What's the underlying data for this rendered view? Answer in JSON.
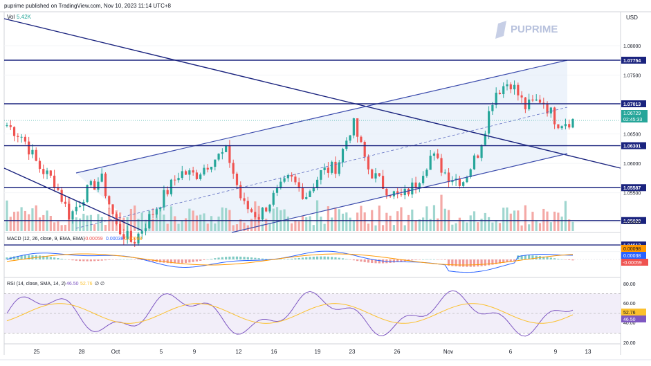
{
  "header": {
    "published_text": "puprime published on TradingView.com, Nov 10, 2023 11:14 UTC+8",
    "brand": "PUPRIME"
  },
  "price_pane": {
    "volume_label": "Vol",
    "volume_value": "5.42K",
    "currency": "USD",
    "price_ticks": [
      "1.08000",
      "1.07500",
      "1.06500",
      "1.06000",
      "1.05500",
      "1.05000",
      "1.04500"
    ],
    "levels": [
      {
        "label": "1.07754",
        "value": 1.07754
      },
      {
        "label": "1.07013",
        "value": 1.07013
      },
      {
        "label": "1.06301",
        "value": 1.06301
      },
      {
        "label": "1.05587",
        "value": 1.05587
      },
      {
        "label": "1.05028",
        "value": 1.05028
      },
      {
        "label": "1.04613",
        "value": 1.04613
      }
    ],
    "last_price": {
      "label": "1.06729",
      "value": 1.06729,
      "countdown": "02:45:33"
    }
  },
  "macd_pane": {
    "label": "MACD (12, 26, close, 9, EMA, EMA)",
    "values": [
      "-0.00059",
      "0.00038",
      "0.00098"
    ],
    "badges": [
      "0.00098",
      "0.00038",
      "-0.00059"
    ]
  },
  "rsi_pane": {
    "label": "RSI (14, close, SMA, 14, 2)",
    "values": [
      "46.50",
      "52.76"
    ],
    "extra": "∅ ∅",
    "ticks": [
      "80.00",
      "60.00",
      "40.00",
      "20.00"
    ],
    "badges": [
      "52.76",
      "46.50"
    ]
  },
  "time_axis": {
    "labels": [
      "25",
      "28",
      "Oct",
      "5",
      "9",
      "12",
      "16",
      "19",
      "23",
      "26",
      "Nov",
      "6",
      "9",
      "13"
    ]
  },
  "colors": {
    "up": "#26a69a",
    "down": "#ef5350",
    "line": "#1a237e",
    "channel": "#3949ab",
    "macd": "#2962ff",
    "signal": "#ff9800",
    "rsi": "#7e57c2",
    "rsi_ma": "#fbc02d"
  },
  "chart_data": {
    "type": "candlestick",
    "symbol_quote": "USD",
    "y_range": [
      1.0445,
      1.0815
    ],
    "horizontal_levels": [
      1.07754,
      1.07013,
      1.06301,
      1.05587,
      1.05028,
      1.04613
    ],
    "close_path": [
      [
        "Sep 21",
        1.0665
      ],
      [
        "Sep 22",
        1.0645
      ],
      [
        "Sep 25",
        1.0595
      ],
      [
        "Sep 26",
        1.057
      ],
      [
        "Sep 27",
        1.051
      ],
      [
        "Sep 28",
        1.055
      ],
      [
        "Sep 29",
        1.0575
      ],
      [
        "Oct 2",
        1.049
      ],
      [
        "Oct 3",
        1.0465
      ],
      [
        "Oct 4",
        1.0505
      ],
      [
        "Oct 5",
        1.0545
      ],
      [
        "Oct 6",
        1.0585
      ],
      [
        "Oct 9",
        1.058
      ],
      [
        "Oct 10",
        1.0605
      ],
      [
        "Oct 11",
        1.062
      ],
      [
        "Oct 12",
        1.053
      ],
      [
        "Oct 13",
        1.051
      ],
      [
        "Oct 16",
        1.0545
      ],
      [
        "Oct 17",
        1.0575
      ],
      [
        "Oct 18",
        1.0545
      ],
      [
        "Oct 19",
        1.0585
      ],
      [
        "Oct 20",
        1.0595
      ],
      [
        "Oct 23",
        1.067
      ],
      [
        "Oct 24",
        1.059
      ],
      [
        "Oct 25",
        1.056
      ],
      [
        "Oct 26",
        1.054
      ],
      [
        "Oct 27",
        1.0565
      ],
      [
        "Oct 30",
        1.0615
      ],
      [
        "Oct 31",
        1.058
      ],
      [
        "Nov 1",
        1.057
      ],
      [
        "Nov 2",
        1.062
      ],
      [
        "Nov 3",
        1.072
      ],
      [
        "Nov 6",
        1.074
      ],
      [
        "Nov 7",
        1.0695
      ],
      [
        "Nov 8",
        1.071
      ],
      [
        "Nov 9",
        1.067
      ],
      [
        "Nov 10",
        1.0673
      ]
    ]
  }
}
